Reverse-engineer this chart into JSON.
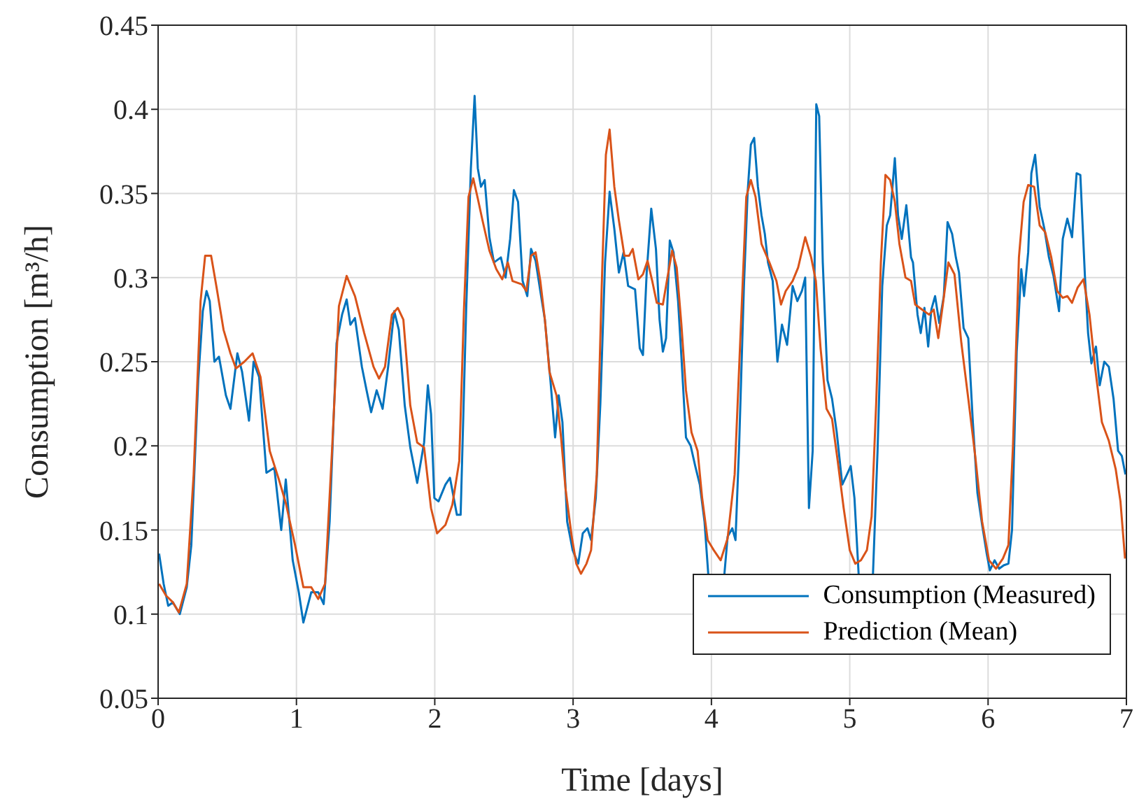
{
  "chart_data": {
    "type": "line",
    "xlabel": "Time [days]",
    "ylabel": "Consumption [m³/h]",
    "xlim": [
      0,
      7
    ],
    "ylim": [
      0.05,
      0.45
    ],
    "xticks": [
      0,
      1,
      2,
      3,
      4,
      5,
      6,
      7
    ],
    "yticks": [
      0.05,
      0.1,
      0.15,
      0.2,
      0.25,
      0.3,
      0.35,
      0.4,
      0.45
    ],
    "grid": true,
    "legend": "bottom right",
    "series": [
      {
        "name": "Consumption (Measured)",
        "color": "#0072bd",
        "x": [
          0.007,
          0.04,
          0.073,
          0.107,
          0.157,
          0.207,
          0.24,
          0.29,
          0.323,
          0.35,
          0.373,
          0.407,
          0.44,
          0.49,
          0.523,
          0.573,
          0.607,
          0.657,
          0.69,
          0.73,
          0.783,
          0.84,
          0.89,
          0.923,
          0.973,
          1.017,
          1.05,
          1.107,
          1.157,
          1.197,
          1.24,
          1.29,
          1.33,
          1.363,
          1.39,
          1.423,
          1.473,
          1.507,
          1.54,
          1.58,
          1.623,
          1.663,
          1.707,
          1.74,
          1.783,
          1.823,
          1.873,
          1.923,
          1.95,
          1.973,
          1.997,
          2.027,
          2.077,
          2.11,
          2.16,
          2.187,
          2.227,
          2.261,
          2.288,
          2.311,
          2.334,
          2.361,
          2.395,
          2.428,
          2.478,
          2.512,
          2.545,
          2.572,
          2.602,
          2.635,
          2.669,
          2.696,
          2.729,
          2.763,
          2.796,
          2.836,
          2.87,
          2.896,
          2.923,
          2.957,
          2.997,
          3.037,
          3.07,
          3.104,
          3.13,
          3.164,
          3.197,
          3.231,
          3.264,
          3.298,
          3.331,
          3.365,
          3.398,
          3.448,
          3.482,
          3.505,
          3.532,
          3.565,
          3.599,
          3.625,
          3.649,
          3.672,
          3.699,
          3.726,
          3.759,
          3.783,
          3.816,
          3.85,
          3.883,
          3.916,
          3.95,
          3.977,
          4.03,
          4.094,
          4.117,
          4.151,
          4.174,
          4.201,
          4.235,
          4.262,
          4.285,
          4.309,
          4.336,
          4.362,
          4.386,
          4.409,
          4.443,
          4.477,
          4.51,
          4.547,
          4.587,
          4.621,
          4.654,
          4.678,
          4.705,
          4.732,
          4.758,
          4.779,
          4.805,
          4.839,
          4.872,
          4.906,
          4.946,
          4.98,
          5.007,
          5.034,
          5.064,
          5.11,
          5.168,
          5.201,
          5.235,
          5.268,
          5.292,
          5.326,
          5.349,
          5.376,
          5.409,
          5.443,
          5.457,
          5.49,
          5.513,
          5.54,
          5.567,
          5.59,
          5.617,
          5.647,
          5.68,
          5.707,
          5.74,
          5.767,
          5.79,
          5.823,
          5.857,
          5.89,
          5.923,
          5.957,
          5.99,
          6.013,
          6.047,
          6.08,
          6.113,
          6.147,
          6.173,
          6.207,
          6.24,
          6.26,
          6.29,
          6.313,
          6.34,
          6.373,
          6.407,
          6.44,
          6.473,
          6.513,
          6.54,
          6.573,
          6.607,
          6.64,
          6.667,
          6.7,
          6.723,
          6.747,
          6.78,
          6.807,
          6.84,
          6.873,
          6.907,
          6.94,
          6.967,
          6.993
        ],
        "values": [
          0.136,
          0.118,
          0.105,
          0.107,
          0.1,
          0.116,
          0.141,
          0.239,
          0.28,
          0.292,
          0.286,
          0.25,
          0.253,
          0.23,
          0.222,
          0.255,
          0.244,
          0.215,
          0.25,
          0.241,
          0.184,
          0.187,
          0.15,
          0.18,
          0.132,
          0.113,
          0.095,
          0.113,
          0.113,
          0.106,
          0.155,
          0.261,
          0.278,
          0.287,
          0.272,
          0.276,
          0.247,
          0.233,
          0.22,
          0.233,
          0.222,
          0.247,
          0.28,
          0.269,
          0.224,
          0.199,
          0.178,
          0.202,
          0.236,
          0.219,
          0.169,
          0.167,
          0.177,
          0.181,
          0.159,
          0.159,
          0.281,
          0.365,
          0.408,
          0.365,
          0.354,
          0.358,
          0.324,
          0.309,
          0.312,
          0.3,
          0.323,
          0.352,
          0.345,
          0.298,
          0.289,
          0.317,
          0.31,
          0.292,
          0.275,
          0.239,
          0.205,
          0.23,
          0.214,
          0.155,
          0.138,
          0.13,
          0.148,
          0.151,
          0.144,
          0.169,
          0.225,
          0.309,
          0.351,
          0.329,
          0.303,
          0.315,
          0.295,
          0.293,
          0.258,
          0.254,
          0.303,
          0.341,
          0.317,
          0.275,
          0.256,
          0.264,
          0.322,
          0.315,
          0.286,
          0.253,
          0.205,
          0.2,
          0.188,
          0.177,
          0.155,
          0.124,
          null,
          0.124,
          0.146,
          0.151,
          0.144,
          0.202,
          0.295,
          0.351,
          0.379,
          0.383,
          0.354,
          0.337,
          0.326,
          0.309,
          0.298,
          0.25,
          0.272,
          0.26,
          0.295,
          0.286,
          0.292,
          0.3,
          0.163,
          0.197,
          0.403,
          0.396,
          0.309,
          0.239,
          0.228,
          0.208,
          0.177,
          0.183,
          0.188,
          0.169,
          0.124,
          null,
          0.124,
          0.197,
          0.295,
          0.331,
          0.337,
          0.371,
          0.337,
          0.323,
          0.343,
          0.312,
          0.309,
          0.278,
          0.267,
          0.282,
          0.259,
          0.281,
          0.289,
          0.273,
          0.289,
          0.333,
          0.326,
          0.312,
          0.303,
          0.27,
          0.264,
          0.214,
          0.172,
          0.153,
          0.136,
          0.126,
          0.132,
          0.127,
          0.129,
          0.13,
          0.15,
          0.256,
          0.305,
          0.289,
          0.315,
          0.362,
          0.373,
          0.342,
          0.329,
          0.312,
          0.301,
          0.28,
          0.323,
          0.335,
          0.324,
          0.362,
          0.361,
          0.301,
          0.267,
          0.249,
          0.259,
          0.236,
          0.25,
          0.247,
          0.228,
          0.197,
          0.194,
          0.183
        ]
      },
      {
        "name": "Prediction (Mean)",
        "color": "#d95319",
        "x": [
          0.007,
          0.057,
          0.107,
          0.15,
          0.207,
          0.257,
          0.307,
          0.34,
          0.383,
          0.423,
          0.473,
          0.523,
          0.563,
          0.623,
          0.683,
          0.74,
          0.807,
          0.873,
          0.923,
          0.99,
          1.05,
          1.107,
          1.157,
          1.207,
          1.257,
          1.307,
          1.363,
          1.423,
          1.49,
          1.557,
          1.597,
          1.64,
          1.69,
          1.733,
          1.773,
          1.823,
          1.873,
          1.923,
          1.973,
          2.017,
          2.077,
          2.127,
          2.177,
          2.211,
          2.244,
          2.278,
          2.311,
          2.345,
          2.395,
          2.445,
          2.488,
          2.528,
          2.562,
          2.629,
          2.662,
          2.696,
          2.729,
          2.763,
          2.796,
          2.829,
          2.88,
          2.913,
          2.946,
          2.99,
          3.023,
          3.057,
          3.097,
          3.13,
          3.171,
          3.207,
          3.237,
          3.264,
          3.298,
          3.331,
          3.371,
          3.405,
          3.431,
          3.472,
          3.505,
          3.538,
          3.572,
          3.605,
          3.649,
          3.682,
          3.716,
          3.749,
          3.783,
          3.816,
          3.856,
          3.9,
          3.933,
          3.973,
          4.017,
          4.067,
          4.117,
          4.168,
          4.218,
          4.252,
          4.285,
          4.319,
          4.362,
          4.419,
          4.47,
          4.503,
          4.537,
          4.587,
          4.627,
          4.678,
          4.721,
          4.755,
          4.789,
          4.832,
          4.872,
          4.913,
          4.956,
          5.0,
          5.04,
          5.081,
          5.124,
          5.158,
          5.191,
          5.225,
          5.258,
          5.292,
          5.326,
          5.359,
          5.403,
          5.443,
          5.473,
          5.523,
          5.573,
          5.607,
          5.64,
          5.673,
          5.713,
          5.757,
          5.807,
          5.857,
          5.907,
          5.957,
          6.007,
          6.057,
          6.107,
          6.147,
          6.18,
          6.223,
          6.257,
          6.29,
          6.333,
          6.373,
          6.413,
          6.457,
          6.5,
          6.54,
          6.573,
          6.607,
          6.647,
          6.69,
          6.733,
          6.773,
          6.823,
          6.873,
          6.923,
          6.957,
          6.99
        ],
        "values": [
          0.118,
          0.111,
          0.107,
          0.101,
          0.118,
          0.183,
          0.286,
          0.313,
          0.313,
          0.294,
          0.269,
          0.255,
          0.246,
          0.25,
          0.255,
          0.241,
          0.197,
          0.18,
          0.166,
          0.141,
          0.116,
          0.116,
          0.109,
          0.118,
          0.197,
          0.283,
          0.301,
          0.289,
          0.267,
          0.247,
          0.24,
          0.247,
          0.278,
          0.282,
          0.275,
          0.224,
          0.202,
          0.199,
          0.163,
          0.148,
          0.153,
          0.165,
          0.191,
          0.281,
          0.348,
          0.359,
          0.347,
          0.334,
          0.316,
          0.305,
          0.299,
          0.309,
          0.298,
          0.296,
          0.292,
          0.313,
          0.315,
          0.298,
          0.275,
          0.244,
          0.23,
          0.205,
          0.174,
          0.146,
          0.13,
          0.124,
          0.13,
          0.138,
          0.183,
          0.295,
          0.373,
          0.388,
          0.354,
          0.334,
          0.313,
          0.313,
          0.317,
          0.299,
          0.302,
          0.31,
          0.298,
          0.285,
          0.284,
          0.3,
          0.316,
          0.306,
          0.272,
          0.233,
          0.208,
          0.197,
          0.169,
          0.144,
          0.138,
          0.132,
          0.145,
          0.183,
          0.281,
          0.348,
          0.358,
          0.348,
          0.32,
          0.309,
          0.298,
          0.284,
          0.292,
          0.298,
          0.306,
          0.324,
          0.312,
          0.298,
          0.258,
          0.222,
          0.216,
          0.191,
          0.163,
          0.138,
          0.13,
          0.132,
          0.138,
          0.158,
          0.225,
          0.309,
          0.361,
          0.358,
          0.345,
          0.32,
          0.3,
          0.298,
          0.284,
          0.281,
          0.278,
          0.281,
          0.264,
          0.284,
          0.309,
          0.302,
          0.261,
          0.228,
          0.194,
          0.155,
          0.132,
          0.127,
          0.133,
          0.141,
          0.2,
          0.312,
          0.345,
          0.355,
          0.354,
          0.331,
          0.327,
          0.312,
          0.292,
          0.288,
          0.289,
          0.285,
          0.294,
          0.299,
          0.278,
          0.247,
          0.214,
          0.203,
          0.186,
          0.167,
          0.133
        ]
      }
    ]
  }
}
